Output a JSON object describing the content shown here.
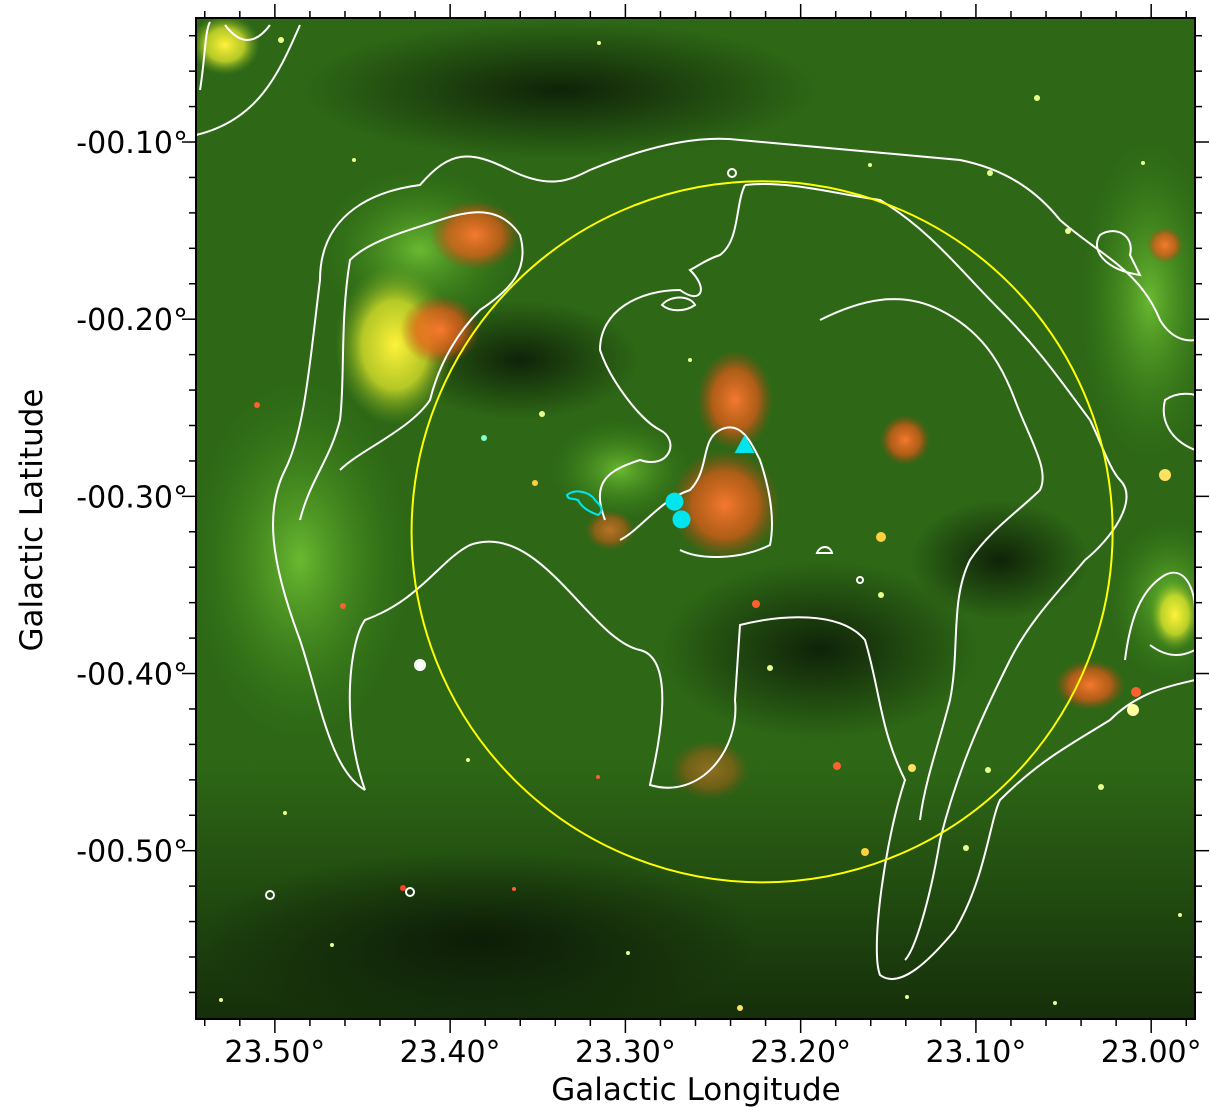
{
  "figure": {
    "x_axis_label": "Galactic Longitude",
    "y_axis_label": "Galactic Latitude",
    "x_tick_labels": [
      "23.50°",
      "23.40°",
      "23.30°",
      "23.20°",
      "23.10°",
      "23.00°"
    ],
    "y_tick_labels": [
      "-00.10°",
      "-00.20°",
      "-00.30°",
      "-00.40°",
      "-00.50°"
    ],
    "x_range_deg": [
      23.545,
      22.975
    ],
    "y_range_deg": [
      -0.595,
      -0.03
    ],
    "x_ticks_deg": [
      23.5,
      23.4,
      23.3,
      23.2,
      23.1,
      23.0
    ],
    "y_ticks_deg": [
      -0.1,
      -0.2,
      -0.3,
      -0.4,
      -0.5
    ],
    "circle": {
      "center_l": 23.222,
      "center_b": -0.32,
      "radius_deg": 0.2,
      "color": "#ffff00"
    },
    "markers": [
      {
        "name": "cyan-circle",
        "shape": "circle",
        "l": 23.272,
        "b": -0.303,
        "color": "#00e5ee"
      },
      {
        "name": "cyan-circle",
        "shape": "circle",
        "l": 23.268,
        "b": -0.313,
        "color": "#00e5ee"
      },
      {
        "name": "cyan-triangle",
        "shape": "triangle",
        "l": 23.232,
        "b": -0.271,
        "color": "#00e5ee"
      }
    ],
    "colors": {
      "background_green": "#2f6a16",
      "dark_lane": "#101e08",
      "hii_region": "#ff5a1e",
      "bright_yellow": "#f0e62a",
      "contour": "#ffffff",
      "axis": "#000000"
    }
  }
}
